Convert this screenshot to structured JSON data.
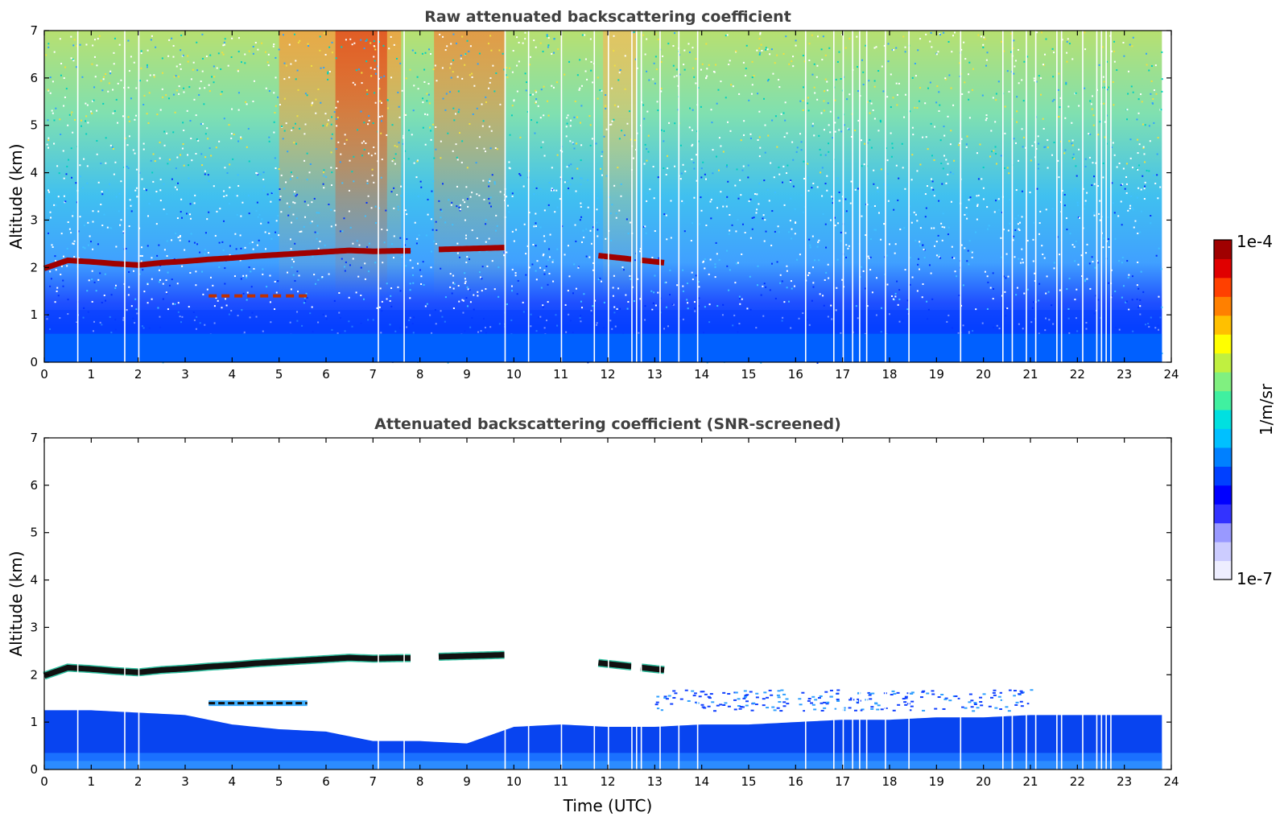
{
  "chart_data": [
    {
      "type": "heatmap",
      "title": "Raw attenuated backscattering coefficient",
      "xlabel": "",
      "ylabel": "Altitude (km)",
      "xlim": [
        0,
        24
      ],
      "ylim": [
        0,
        7
      ],
      "xticks": [
        "0",
        "1",
        "2",
        "3",
        "4",
        "5",
        "6",
        "7",
        "8",
        "9",
        "10",
        "11",
        "12",
        "13",
        "14",
        "15",
        "16",
        "17",
        "18",
        "19",
        "20",
        "21",
        "22",
        "23",
        "24"
      ],
      "yticks": [
        "0",
        "1",
        "2",
        "3",
        "4",
        "5",
        "6",
        "7"
      ],
      "data_end_time": 23.8,
      "cloud_layer": {
        "time": [
          0,
          0.5,
          1,
          1.5,
          2,
          2.5,
          3,
          3.5,
          4,
          4.5,
          5,
          5.5,
          6,
          6.5,
          7,
          7.5,
          7.8
        ],
        "altitude": [
          1.98,
          2.15,
          2.12,
          2.08,
          2.05,
          2.1,
          2.13,
          2.17,
          2.2,
          2.24,
          2.27,
          2.3,
          2.33,
          2.36,
          2.34,
          2.35,
          2.35
        ],
        "segments": [
          [
            0,
            7.8
          ],
          [
            8.4,
            9.8
          ],
          [
            11.8,
            12.5
          ],
          [
            12.7,
            13.2
          ]
        ],
        "late_altitude": [
          [
            8.4,
            2.38
          ],
          [
            9.8,
            2.42
          ],
          [
            11.8,
            2.25
          ],
          [
            13.2,
            2.1
          ]
        ]
      },
      "secondary_layer": {
        "time_range": [
          3.5,
          5.6
        ],
        "altitude": 1.4
      },
      "data_gaps_hours": [
        0.7,
        1.7,
        2.0,
        7.1,
        7.65,
        9.8,
        10.3,
        11.0,
        11.7,
        12.0,
        12.5,
        12.6,
        12.7,
        13.1,
        13.5,
        13.9,
        16.2,
        16.8,
        17.0,
        17.2,
        17.35,
        17.5,
        17.9,
        18.4,
        19.5,
        20.4,
        20.6,
        20.9,
        21.1,
        21.55,
        21.65,
        22.1,
        22.4,
        22.5,
        22.6,
        22.7
      ]
    },
    {
      "type": "heatmap",
      "title": "Attenuated backscattering coefficient (SNR-screened)",
      "xlabel": "Time (UTC)",
      "ylabel": "Altitude (km)",
      "xlim": [
        0,
        24
      ],
      "ylim": [
        0,
        7
      ],
      "xticks": [
        "0",
        "1",
        "2",
        "3",
        "4",
        "5",
        "6",
        "7",
        "8",
        "9",
        "10",
        "11",
        "12",
        "13",
        "14",
        "15",
        "16",
        "17",
        "18",
        "19",
        "20",
        "21",
        "22",
        "23",
        "24"
      ],
      "yticks": [
        "0",
        "1",
        "2",
        "3",
        "4",
        "5",
        "6",
        "7"
      ],
      "boundary_layer_top": {
        "time": [
          0,
          1,
          2,
          3,
          4,
          5,
          6,
          7,
          8,
          9,
          10,
          11,
          12,
          13,
          14,
          15,
          16,
          17,
          18,
          19,
          20,
          21,
          22,
          23,
          23.8
        ],
        "altitude": [
          1.25,
          1.25,
          1.2,
          1.15,
          0.95,
          0.85,
          0.8,
          0.6,
          0.6,
          0.55,
          0.9,
          0.95,
          0.9,
          0.9,
          0.95,
          0.95,
          1.0,
          1.05,
          1.05,
          1.1,
          1.1,
          1.15,
          1.15,
          1.15,
          1.15
        ]
      }
    }
  ],
  "colorbar": {
    "label": "1/m/sr",
    "max_label": "1e-4",
    "min_label": "1e-7",
    "colors": [
      "#eeeeff",
      "#ccccff",
      "#9999ff",
      "#3333ff",
      "#0000ff",
      "#0040ff",
      "#0080ff",
      "#00c0ff",
      "#00e0e0",
      "#40f0a0",
      "#80f080",
      "#c0f040",
      "#ffff00",
      "#ffc000",
      "#ff8000",
      "#ff4000",
      "#e00000",
      "#a00000"
    ]
  }
}
